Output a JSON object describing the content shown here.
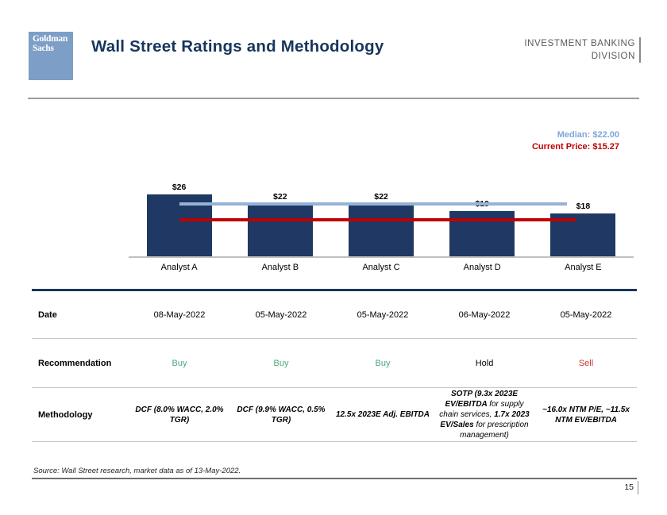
{
  "header": {
    "logo_line1": "Goldman",
    "logo_line2": "Sachs",
    "title": "Wall Street Ratings and Methodology",
    "division_line1": "INVESTMENT BANKING",
    "division_line2": "DIVISION"
  },
  "annotations": {
    "median_label": "Median: $22.00",
    "current_price_label": "Current Price: $15.27"
  },
  "chart_data": {
    "type": "bar",
    "title": "",
    "categories": [
      "Analyst A",
      "Analyst B",
      "Analyst C",
      "Analyst D",
      "Analyst E"
    ],
    "values": [
      26,
      22,
      22,
      19,
      18
    ],
    "value_labels": [
      "$26",
      "$22",
      "$22",
      "$19",
      "$18"
    ],
    "median": 22.0,
    "current_price": 15.27,
    "ylim": [
      0,
      28
    ],
    "grid": false,
    "legend": false,
    "bar_color": "#1F3864",
    "median_line_color": "#95B3D7",
    "current_price_line_color": "#C00000"
  },
  "table": {
    "rows": [
      {
        "label": "Date",
        "type": "text",
        "values": [
          "08-May-2022",
          "05-May-2022",
          "05-May-2022",
          "06-May-2022",
          "05-May-2022"
        ]
      },
      {
        "label": "Recommendation",
        "type": "colored",
        "values": [
          "Buy",
          "Buy",
          "Buy",
          "Hold",
          "Sell"
        ],
        "value_colors": [
          "#4BA77C",
          "#4BA77C",
          "#4BA77C",
          "#000000",
          "#CC3333"
        ]
      },
      {
        "label": "Methodology",
        "type": "segments",
        "values": [
          [
            {
              "text": "DCF (8.0% WACC, 2.0% TGR)",
              "bold": true
            }
          ],
          [
            {
              "text": "DCF (9.9% WACC, 0.5% TGR)",
              "bold": true
            }
          ],
          [
            {
              "text": "12.5x 2023E Adj. EBITDA",
              "bold": true
            }
          ],
          [
            {
              "text": "SOTP (9.3x 2023E EV/EBITDA ",
              "bold": true
            },
            {
              "text": "for supply chain services, ",
              "bold": false
            },
            {
              "text": "1.7x 2023 EV/Sales ",
              "bold": true
            },
            {
              "text": "for prescription management)",
              "bold": false
            }
          ],
          [
            {
              "text": "~16.0x NTM P/E, ~11.5x NTM EV/EBITDA",
              "bold": true
            }
          ]
        ]
      }
    ]
  },
  "footer": {
    "source": "Source: Wall Street research, market data as of 13-May-2022.",
    "page_number": "15"
  },
  "colors": {
    "logo_blue": "#7D9EC7",
    "title_navy": "#17365D",
    "bar_navy": "#1F3864",
    "median_blue": "#95B3D7",
    "current_red": "#C00000",
    "buy_green": "#4BA77C",
    "sell_red": "#CC3333"
  }
}
